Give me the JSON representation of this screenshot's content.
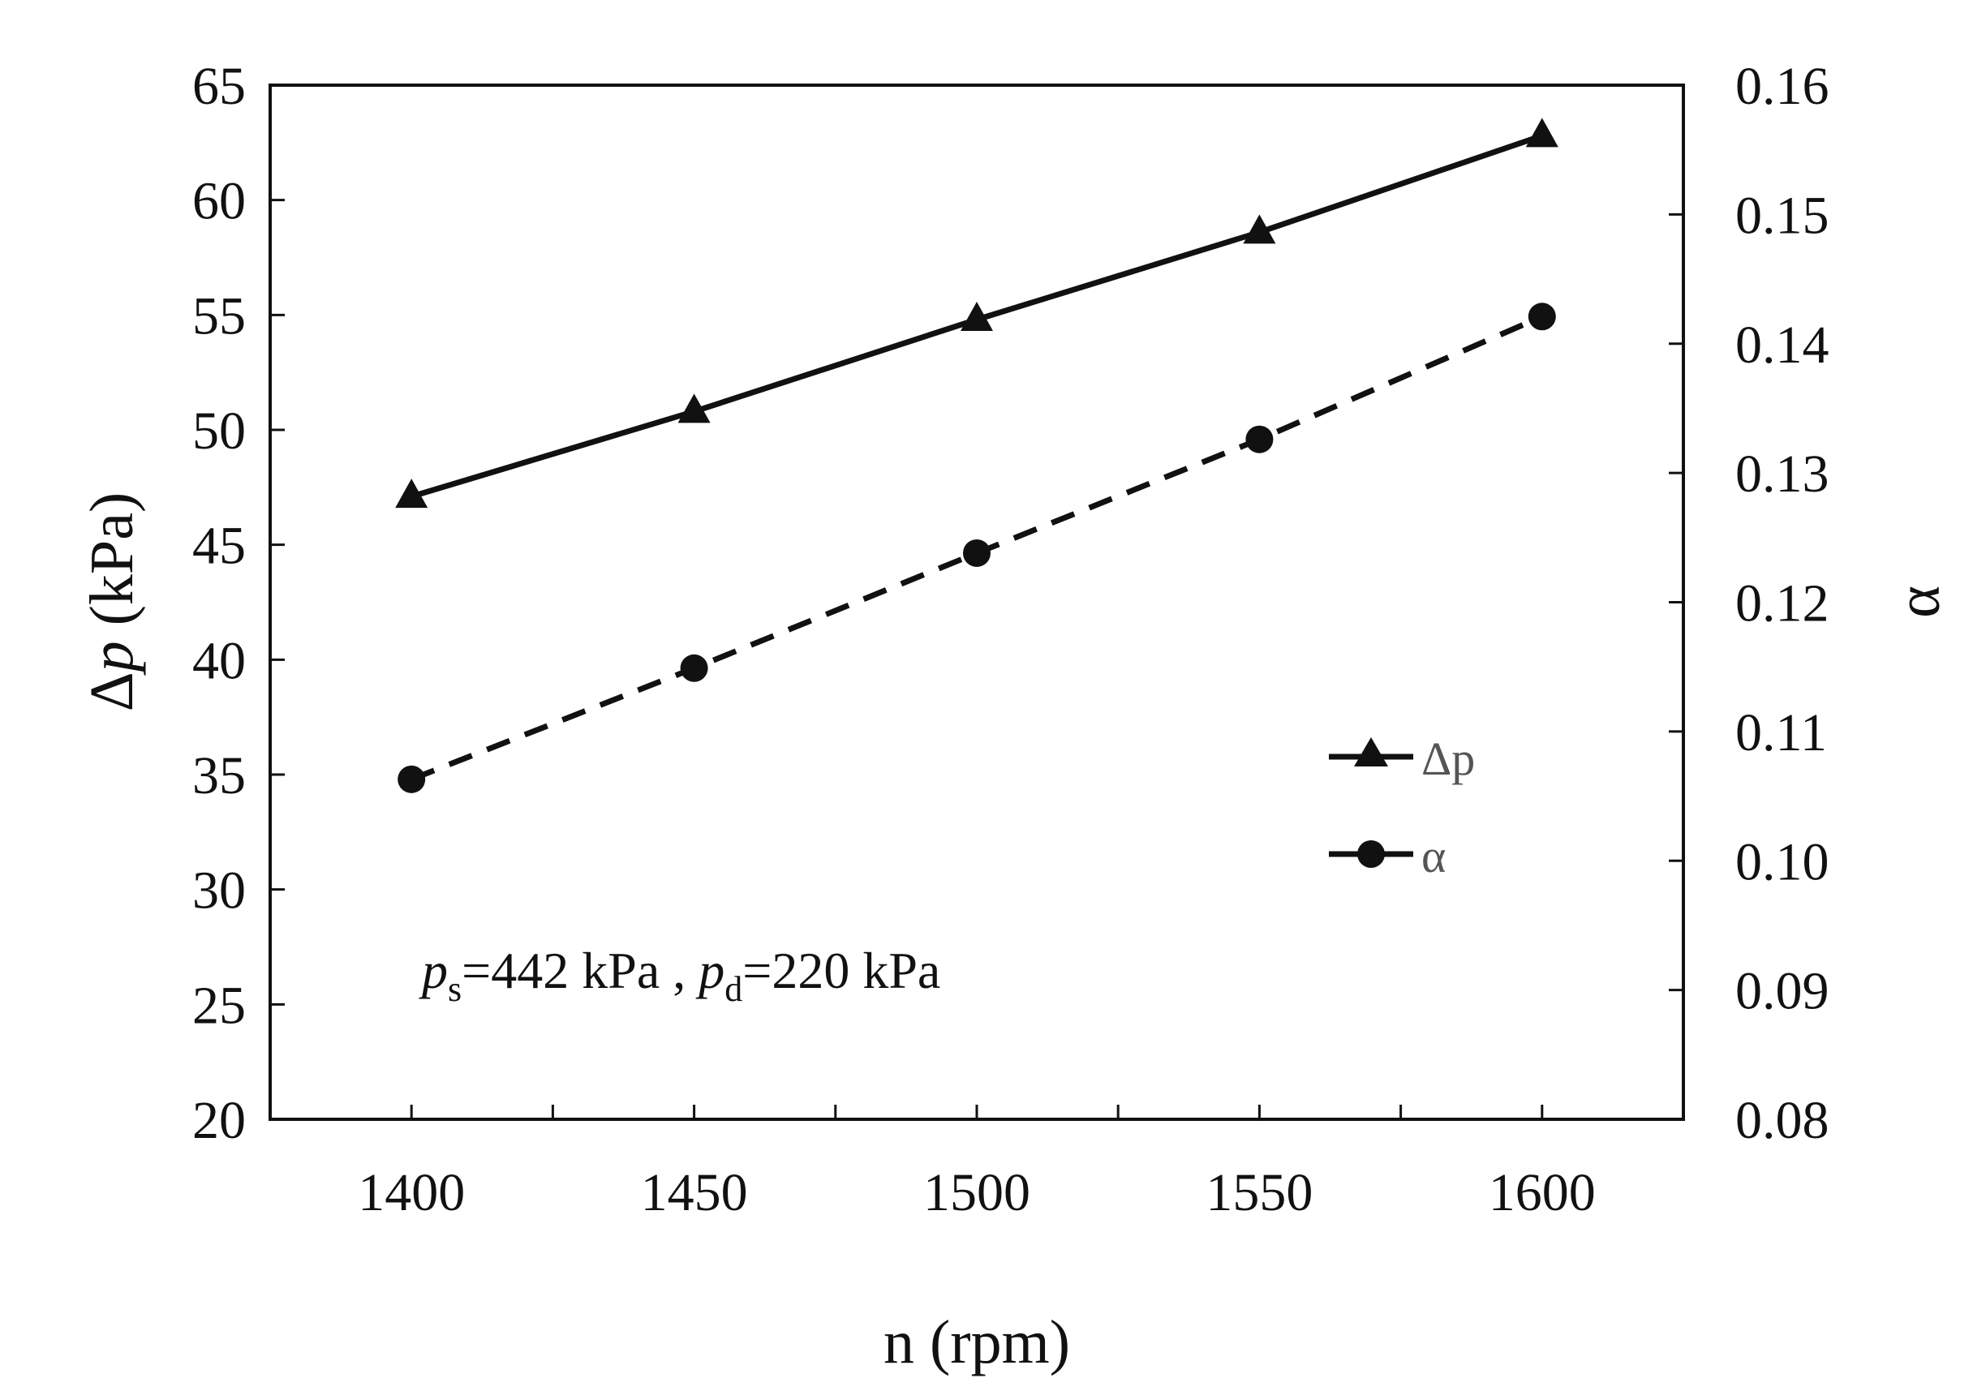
{
  "chart_data": {
    "type": "line",
    "x": [
      1400,
      1450,
      1500,
      1550,
      1600
    ],
    "series": [
      {
        "name": "Δp",
        "axis": "left",
        "marker": "triangle",
        "line_style": "solid",
        "values": [
          47.1,
          50.8,
          54.8,
          58.6,
          62.8
        ]
      },
      {
        "name": "α",
        "axis": "right",
        "marker": "circle",
        "line_style": "dashed",
        "values": [
          0.1063,
          0.1149,
          0.1238,
          0.1326,
          0.1421
        ]
      }
    ],
    "xlabel": "n (rpm)",
    "ylabel_left": {
      "prefix": "Δ",
      "var": "p",
      "suffix": " (kPa)"
    },
    "ylabel_right": "α",
    "xlim": [
      1375,
      1625
    ],
    "x_ticks": [
      1400,
      1450,
      1500,
      1550,
      1600
    ],
    "x_minor_ticks": [
      1425,
      1475,
      1525,
      1575
    ],
    "ylim_left": [
      20,
      65
    ],
    "y_ticks_left": [
      "20",
      "25",
      "30",
      "35",
      "40",
      "45",
      "50",
      "55",
      "60",
      "65"
    ],
    "ylim_right": [
      0.08,
      0.16
    ],
    "y_ticks_right": [
      "0.08",
      "0.09",
      "0.10",
      "0.11",
      "0.12",
      "0.13",
      "0.14",
      "0.15",
      "0.16"
    ],
    "grid": false,
    "legend": {
      "position": "middle-right",
      "entries": [
        "Δp",
        "α"
      ]
    },
    "annotation": {
      "p1": "p",
      "sub1": "s",
      "mid": "=442 kPa , ",
      "p2": "p",
      "sub2": "d",
      "end": "=220 kPa"
    },
    "colors": {
      "lines": "#111111",
      "legend_text": "#555555"
    }
  }
}
